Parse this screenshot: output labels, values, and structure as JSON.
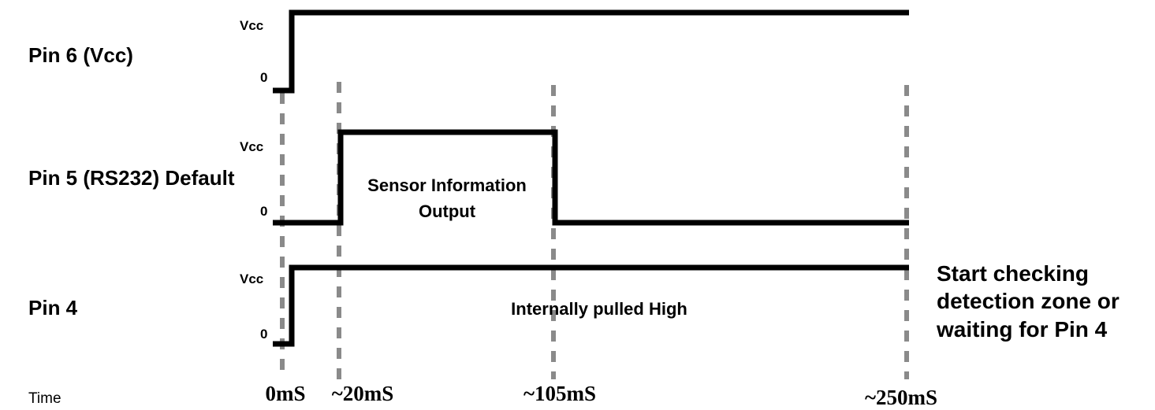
{
  "rows": [
    {
      "id": "pin6",
      "label": "Pin 6 (Vcc)",
      "level_high": "Vcc",
      "level_low": "0"
    },
    {
      "id": "pin5",
      "label": "Pin 5 (RS232) Default",
      "level_high": "Vcc",
      "level_low": "0",
      "annotation_line1": "Sensor Information",
      "annotation_line2": "Output"
    },
    {
      "id": "pin4",
      "label": "Pin 4",
      "level_high": "Vcc",
      "level_low": "0",
      "annotation": "Internally pulled High"
    }
  ],
  "time_axis": {
    "title": "Time",
    "ticks": [
      "0mS",
      "~20mS",
      "~105mS",
      "~250mS"
    ]
  },
  "side_note": {
    "line1": "Start checking",
    "line2": "detection zone or",
    "line3": "waiting for Pin 4"
  },
  "colors": {
    "signal": "#000000",
    "guide": "#8a8a8a"
  }
}
